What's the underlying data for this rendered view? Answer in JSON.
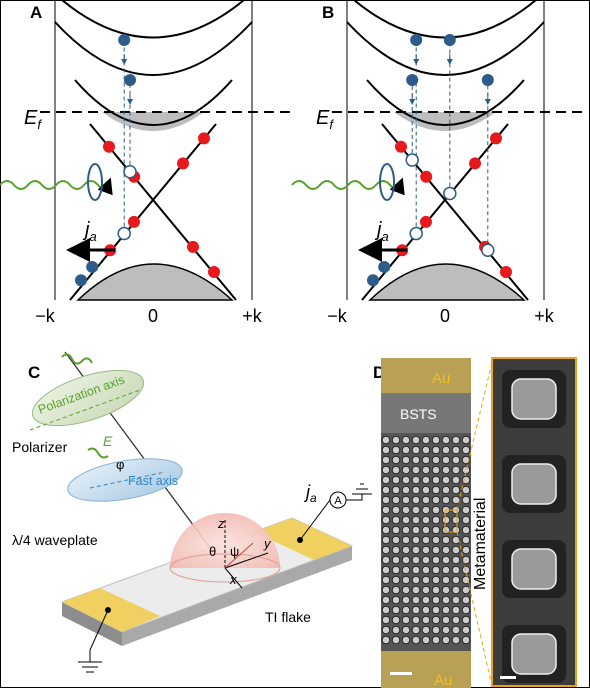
{
  "panels": [
    {
      "label": "A",
      "fermi": {
        "symbol": "E",
        "subscript": "f"
      },
      "current": {
        "symbol": "j",
        "subscript": "a"
      },
      "k_axis": [
        "−k",
        "0",
        "+k"
      ]
    },
    {
      "label": "B",
      "fermi": {
        "symbol": "E",
        "subscript": "f"
      },
      "current": {
        "symbol": "j",
        "subscript": "a"
      },
      "k_axis": [
        "−k",
        "0",
        "+k"
      ]
    }
  ],
  "panel_c": {
    "label": "C",
    "polarization_axis": "Polarization axis",
    "field": "E",
    "polarizer": "Polarizer",
    "angle_phi": "φ",
    "fast_axis": "Fast axis",
    "waveplate": "λ/4 waveplate",
    "axis_z": "z",
    "angle_theta": "θ",
    "angle_psi": "ψ",
    "axis_y": "y",
    "axis_x": "x",
    "current": {
      "symbol": "j",
      "subscript": "a"
    },
    "ammeter": "A",
    "sample": "TI flake"
  },
  "panel_d": {
    "label": "D",
    "top_electrode": "Au",
    "layer": "BSTS",
    "bottom_electrode": "Au",
    "structure": "Metamaterial"
  }
}
